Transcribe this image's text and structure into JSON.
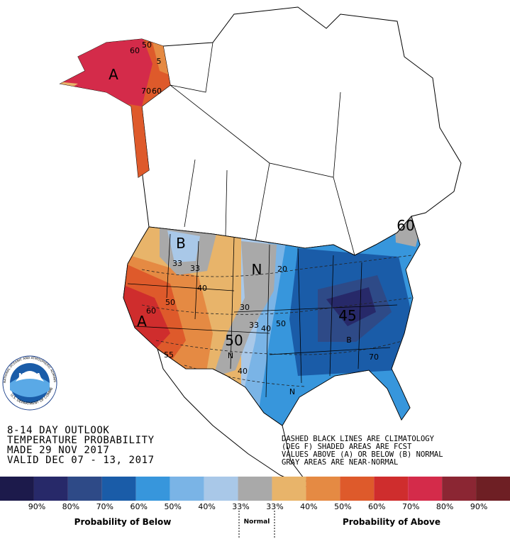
{
  "outlook": {
    "lines": [
      "8-14 DAY OUTLOOK",
      "TEMPERATURE PROBABILITY",
      "MADE  29 NOV 2017",
      "VALID  DEC 07 - 13, 2017"
    ]
  },
  "notes": {
    "lines": [
      "DASHED BLACK LINES ARE CLIMATOLOGY",
      "(DEG F) SHADED AREAS ARE FCST",
      "VALUES ABOVE (A) OR BELOW (B) NORMAL",
      "GRAY AREAS ARE NEAR-NORMAL"
    ]
  },
  "logo": {
    "name": "NOAA",
    "ring_top": "NATIONAL OCEANIC AND ATMOSPHERIC ADMINISTRATION",
    "ring_bottom": "U.S. DEPARTMENT OF COMMERCE"
  },
  "map": {
    "labels": [
      "60",
      "50",
      "A",
      "70",
      "60",
      "5",
      "B",
      "33",
      "33",
      "40",
      "50",
      "60",
      "A",
      "55",
      "N",
      "20",
      "30",
      "33",
      "40",
      "50",
      "50",
      "N",
      "40",
      "45",
      "B",
      "70",
      "60",
      "N",
      "50"
    ]
  },
  "legend": {
    "colors": [
      "#1c1a4b",
      "#272969",
      "#2e4a87",
      "#1a5ca8",
      "#3796dc",
      "#7ab4e6",
      "#a9c8e8",
      "#a9a9a9",
      "#e8b46a",
      "#e58a43",
      "#de5a2b",
      "#cf2d2d",
      "#d42b4a",
      "#8b2633",
      "#6e1f24"
    ],
    "labels": [
      "90%",
      "80%",
      "70%",
      "60%",
      "50%",
      "40%",
      "33%",
      "33%",
      "40%",
      "50%",
      "60%",
      "70%",
      "80%",
      "90%"
    ],
    "below_title": "Probability of Below",
    "normal_title": "Normal",
    "above_title": "Probability of Above"
  }
}
